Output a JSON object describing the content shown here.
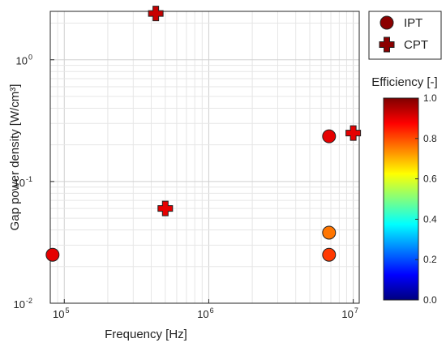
{
  "chart_data": {
    "type": "scatter",
    "xlabel": "Frequency [Hz]",
    "ylabel": "Gap power density [W/cm³]",
    "x_scale": "log",
    "y_scale": "log",
    "xlim": [
      80000,
      11000000
    ],
    "ylim": [
      0.01,
      2.5
    ],
    "grid": true,
    "x_ticks": [
      {
        "value": 100000,
        "base": "10",
        "exp": "5"
      },
      {
        "value": 1000000,
        "base": "10",
        "exp": "6"
      },
      {
        "value": 10000000,
        "base": "10",
        "exp": "7"
      }
    ],
    "y_ticks": [
      {
        "value": 0.01,
        "base": "10",
        "exp": "-2"
      },
      {
        "value": 0.1,
        "base": "10",
        "exp": "-1"
      },
      {
        "value": 1,
        "base": "10",
        "exp": "0"
      }
    ],
    "series": [
      {
        "name": "IPT",
        "marker": "circle",
        "points": [
          {
            "x": 83000,
            "y": 0.025,
            "efficiency": 0.9
          },
          {
            "x": 6800000,
            "y": 0.235,
            "efficiency": 0.9
          },
          {
            "x": 6800000,
            "y": 0.038,
            "efficiency": 0.76
          },
          {
            "x": 6800000,
            "y": 0.025,
            "efficiency": 0.82
          }
        ]
      },
      {
        "name": "CPT",
        "marker": "plus",
        "points": [
          {
            "x": 430000,
            "y": 2.4,
            "efficiency": 0.93
          },
          {
            "x": 500000,
            "y": 0.06,
            "efficiency": 0.9
          },
          {
            "x": 10000000,
            "y": 0.25,
            "efficiency": 0.9
          }
        ]
      }
    ],
    "legend": {
      "placement": "top-right outside",
      "entries": [
        {
          "label": "IPT",
          "marker": "circle",
          "color": "#8b0000"
        },
        {
          "label": "CPT",
          "marker": "plus",
          "color": "#8b0000"
        }
      ]
    },
    "colorbar": {
      "title": "Efficiency [-]",
      "colormap": "jet",
      "range": [
        0,
        1
      ],
      "ticks": [
        "0.0",
        "0.2",
        "0.4",
        "0.6",
        "0.8",
        "1.0"
      ]
    }
  }
}
